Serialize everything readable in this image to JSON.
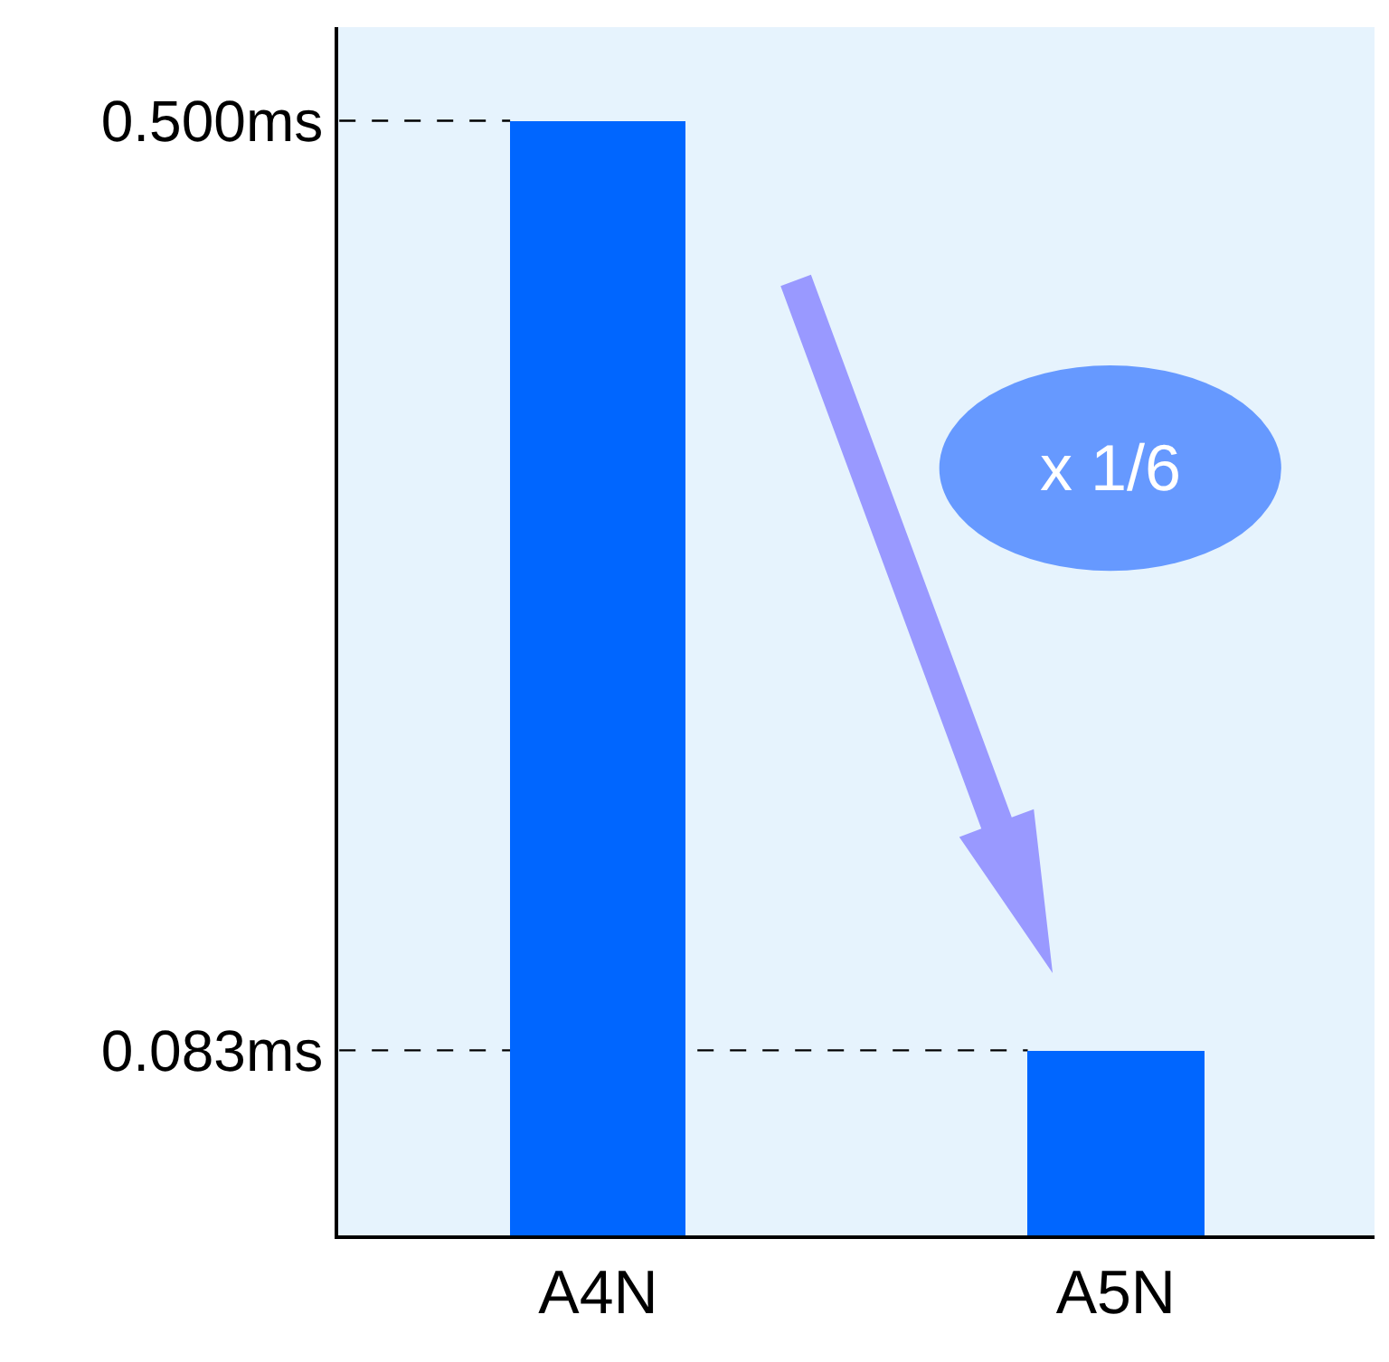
{
  "chart_data": {
    "type": "bar",
    "categories": [
      "A4N",
      "A5N"
    ],
    "values": [
      0.5,
      0.083
    ],
    "color": "#0066ff",
    "ylim": [
      0,
      0.542
    ],
    "yticks": [
      {
        "value": 0.083,
        "label": "0.083ms"
      },
      {
        "value": 0.5,
        "label": "0.500ms"
      }
    ],
    "ref_lines": [
      {
        "axis": "y",
        "value": 0.5,
        "color": "#000000",
        "line_style": "dashed"
      },
      {
        "axis": "y",
        "value": 0.083,
        "color": "#000000",
        "line_style": "dashed"
      }
    ],
    "annotations": [
      "x 1/6"
    ],
    "grid": false
  }
}
